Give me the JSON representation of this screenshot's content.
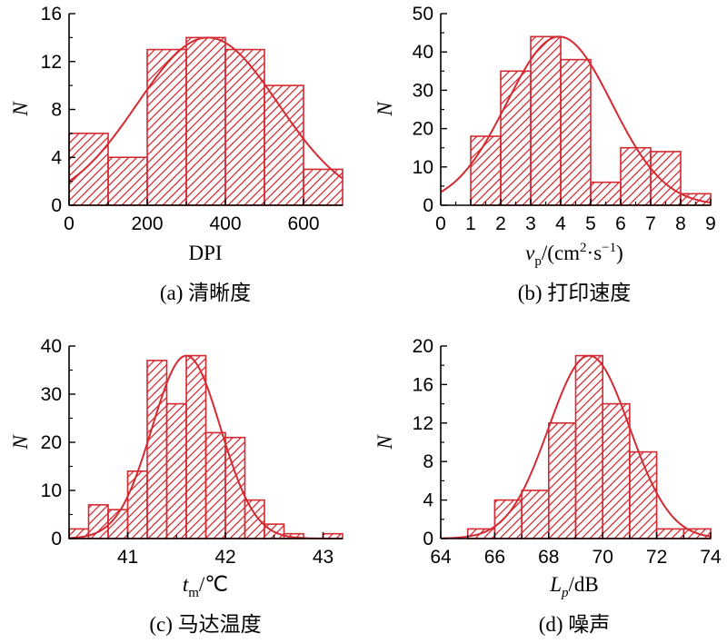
{
  "colors": {
    "bar": "#d42a32",
    "curve": "#d42a32",
    "axis": "#000000"
  },
  "chart_data": [
    {
      "type": "bar",
      "caption": "(a) 清晰度",
      "xlabel": "DPI",
      "ylabel": "N",
      "xlim": [
        0,
        700
      ],
      "ylim": [
        0,
        16
      ],
      "xticks": [
        0,
        200,
        400,
        600
      ],
      "yticks": [
        0,
        4,
        8,
        12,
        16
      ],
      "bin_edges": [
        0,
        100,
        200,
        300,
        400,
        500,
        600,
        700
      ],
      "values": [
        6,
        4,
        13,
        14,
        13,
        10,
        3
      ],
      "fit": {
        "mean": 355,
        "sd": 180,
        "peak": 14
      }
    },
    {
      "type": "bar",
      "caption": "(b) 打印速度",
      "xlabel": "vp/(cm²·s⁻¹)",
      "ylabel": "N",
      "xlim": [
        0,
        9
      ],
      "ylim": [
        0,
        50
      ],
      "xticks": [
        0,
        1,
        2,
        3,
        4,
        5,
        6,
        7,
        8,
        9
      ],
      "yticks": [
        0,
        10,
        20,
        30,
        40,
        50
      ],
      "bin_edges": [
        1,
        2,
        3,
        4,
        5,
        6,
        7,
        8,
        9
      ],
      "values": [
        18,
        35,
        44,
        38,
        6,
        15,
        14,
        3
      ],
      "fit": {
        "mean": 3.95,
        "sd": 1.75,
        "peak": 44
      }
    },
    {
      "type": "bar",
      "caption": "(c) 马达温度",
      "xlabel": "tm/℃",
      "ylabel": "N",
      "xlim": [
        40.4,
        43.2
      ],
      "ylim": [
        0,
        40
      ],
      "xticks": [
        41,
        42,
        43
      ],
      "yticks": [
        0,
        10,
        20,
        30,
        40
      ],
      "bin_edges": [
        40.4,
        40.6,
        40.8,
        41.0,
        41.2,
        41.4,
        41.6,
        41.8,
        42.0,
        42.2,
        42.4,
        42.6,
        42.8,
        43.0,
        43.2
      ],
      "values": [
        2,
        7,
        6,
        14,
        37,
        28,
        38,
        22,
        21,
        8,
        3,
        1,
        0,
        1
      ],
      "fit": {
        "mean": 41.6,
        "sd": 0.35,
        "peak": 38
      }
    },
    {
      "type": "bar",
      "caption": "(d) 噪声",
      "xlabel": "Lp/dB",
      "ylabel": "N",
      "xlim": [
        64,
        74
      ],
      "ylim": [
        0,
        20
      ],
      "xticks": [
        64,
        66,
        68,
        70,
        72,
        74
      ],
      "yticks": [
        0,
        4,
        8,
        12,
        16,
        20
      ],
      "bin_edges": [
        65,
        66,
        67,
        68,
        69,
        70,
        71,
        72,
        73,
        74
      ],
      "values": [
        1,
        4,
        5,
        12,
        19,
        14,
        9,
        1,
        1
      ],
      "fit": {
        "mean": 69.5,
        "sd": 1.5,
        "peak": 19
      }
    }
  ]
}
